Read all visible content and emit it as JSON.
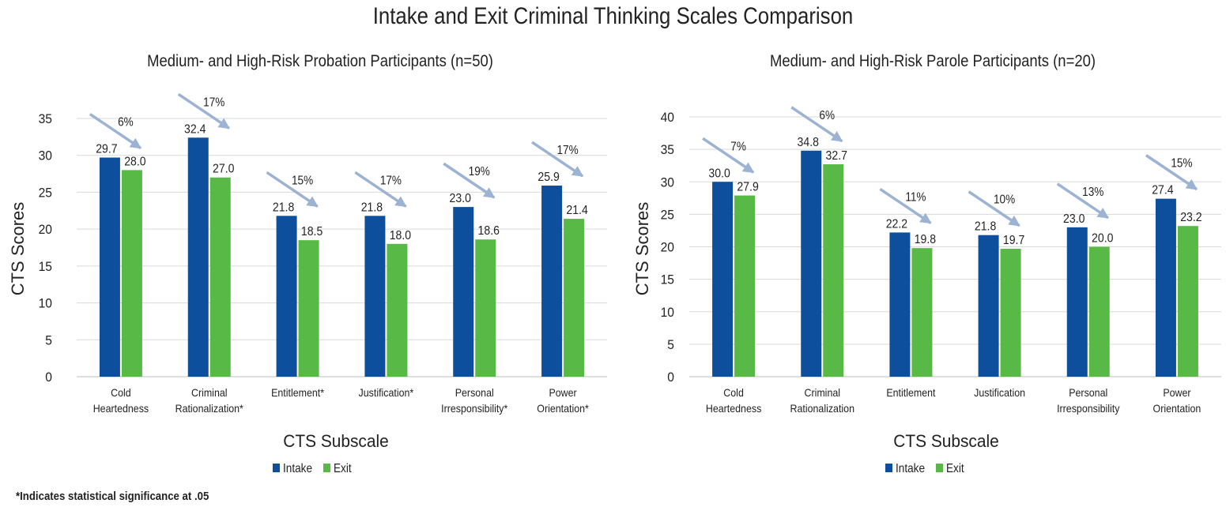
{
  "main_title": "Intake and Exit Criminal Thinking Scales Comparison",
  "footnote": "*Indicates statistical significance at .05",
  "colors": {
    "intake": "#0D4F9C",
    "exit": "#58B947",
    "arrow": "#9DB3D3",
    "grid": "#D9D9D9"
  },
  "chart_data": [
    {
      "type": "bar",
      "title": "Medium- and High-Risk Probation Participants (n=50)",
      "xlabel": "CTS Subscale",
      "ylabel": "CTS Scores",
      "ylim": [
        0,
        35
      ],
      "yticks": [
        0,
        5,
        10,
        15,
        20,
        25,
        30,
        35
      ],
      "grid": true,
      "legend_position": "bottom",
      "categories": [
        [
          "Cold",
          "Heartedness"
        ],
        [
          "Criminal",
          "Rationalization*"
        ],
        [
          "Entitlement*"
        ],
        [
          "Justification*"
        ],
        [
          "Personal",
          "Irresponsibility*"
        ],
        [
          "Power",
          "Orientation*"
        ]
      ],
      "series": [
        {
          "name": "Intake",
          "values": [
            29.7,
            32.4,
            21.8,
            21.8,
            23.0,
            25.9
          ],
          "labels": [
            "29.7",
            "32.4",
            "21.8",
            "21.8",
            "23.0",
            "25.9"
          ]
        },
        {
          "name": "Exit",
          "values": [
            28.0,
            27.0,
            18.5,
            18.0,
            18.6,
            21.4
          ],
          "labels": [
            "28.0",
            "27.0",
            "18.5",
            "18.0",
            "18.6",
            "21.4"
          ]
        }
      ],
      "percent_change": [
        "6%",
        "17%",
        "15%",
        "17%",
        "19%",
        "17%"
      ]
    },
    {
      "type": "bar",
      "title": "Medium- and High-Risk Parole Participants (n=20)",
      "xlabel": "CTS Subscale",
      "ylabel": "CTS Scores",
      "ylim": [
        0,
        40
      ],
      "yticks": [
        0,
        5,
        10,
        15,
        20,
        25,
        30,
        35,
        40
      ],
      "grid": true,
      "legend_position": "bottom",
      "categories": [
        [
          "Cold",
          "Heartedness"
        ],
        [
          "Criminal",
          "Rationalization"
        ],
        [
          "Entitlement"
        ],
        [
          "Justification"
        ],
        [
          "Personal",
          "Irresponsibility"
        ],
        [
          "Power",
          "Orientation"
        ]
      ],
      "series": [
        {
          "name": "Intake",
          "values": [
            30.0,
            34.8,
            22.2,
            21.8,
            23.0,
            27.4
          ],
          "labels": [
            "30.0",
            "34.8",
            "22.2",
            "21.8",
            "23.0",
            "27.4"
          ]
        },
        {
          "name": "Exit",
          "values": [
            27.9,
            32.7,
            19.8,
            19.7,
            20.0,
            23.2
          ],
          "labels": [
            "27.9",
            "32.7",
            "19.8",
            "19.7",
            "20.0",
            "23.2"
          ]
        }
      ],
      "percent_change": [
        "7%",
        "6%",
        "11%",
        "10%",
        "13%",
        "15%"
      ]
    }
  ]
}
